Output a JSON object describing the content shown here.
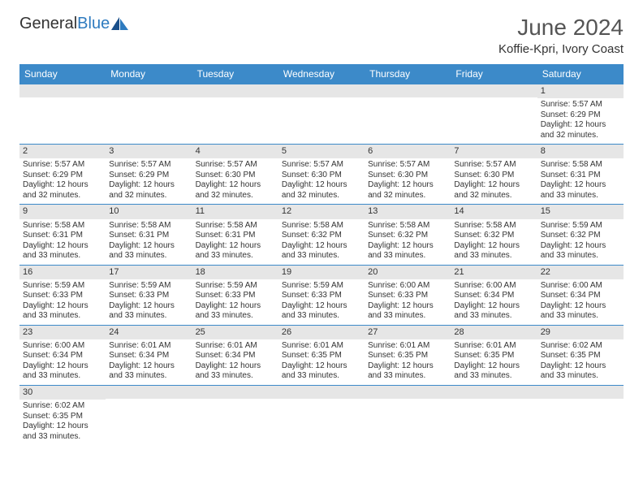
{
  "brand": {
    "part1": "General",
    "part2": "Blue"
  },
  "title": "June 2024",
  "location": "Koffie-Kpri, Ivory Coast",
  "colors": {
    "header_bg": "#3c8ac9",
    "header_text": "#ffffff",
    "daynum_bg": "#e6e6e6",
    "border": "#3c8ac9",
    "text": "#333333"
  },
  "day_headers": [
    "Sunday",
    "Monday",
    "Tuesday",
    "Wednesday",
    "Thursday",
    "Friday",
    "Saturday"
  ],
  "weeks": [
    [
      null,
      null,
      null,
      null,
      null,
      null,
      {
        "n": "1",
        "sr": "5:57 AM",
        "ss": "6:29 PM",
        "dl": "12 hours and 32 minutes."
      }
    ],
    [
      {
        "n": "2",
        "sr": "5:57 AM",
        "ss": "6:29 PM",
        "dl": "12 hours and 32 minutes."
      },
      {
        "n": "3",
        "sr": "5:57 AM",
        "ss": "6:29 PM",
        "dl": "12 hours and 32 minutes."
      },
      {
        "n": "4",
        "sr": "5:57 AM",
        "ss": "6:30 PM",
        "dl": "12 hours and 32 minutes."
      },
      {
        "n": "5",
        "sr": "5:57 AM",
        "ss": "6:30 PM",
        "dl": "12 hours and 32 minutes."
      },
      {
        "n": "6",
        "sr": "5:57 AM",
        "ss": "6:30 PM",
        "dl": "12 hours and 32 minutes."
      },
      {
        "n": "7",
        "sr": "5:57 AM",
        "ss": "6:30 PM",
        "dl": "12 hours and 32 minutes."
      },
      {
        "n": "8",
        "sr": "5:58 AM",
        "ss": "6:31 PM",
        "dl": "12 hours and 33 minutes."
      }
    ],
    [
      {
        "n": "9",
        "sr": "5:58 AM",
        "ss": "6:31 PM",
        "dl": "12 hours and 33 minutes."
      },
      {
        "n": "10",
        "sr": "5:58 AM",
        "ss": "6:31 PM",
        "dl": "12 hours and 33 minutes."
      },
      {
        "n": "11",
        "sr": "5:58 AM",
        "ss": "6:31 PM",
        "dl": "12 hours and 33 minutes."
      },
      {
        "n": "12",
        "sr": "5:58 AM",
        "ss": "6:32 PM",
        "dl": "12 hours and 33 minutes."
      },
      {
        "n": "13",
        "sr": "5:58 AM",
        "ss": "6:32 PM",
        "dl": "12 hours and 33 minutes."
      },
      {
        "n": "14",
        "sr": "5:58 AM",
        "ss": "6:32 PM",
        "dl": "12 hours and 33 minutes."
      },
      {
        "n": "15",
        "sr": "5:59 AM",
        "ss": "6:32 PM",
        "dl": "12 hours and 33 minutes."
      }
    ],
    [
      {
        "n": "16",
        "sr": "5:59 AM",
        "ss": "6:33 PM",
        "dl": "12 hours and 33 minutes."
      },
      {
        "n": "17",
        "sr": "5:59 AM",
        "ss": "6:33 PM",
        "dl": "12 hours and 33 minutes."
      },
      {
        "n": "18",
        "sr": "5:59 AM",
        "ss": "6:33 PM",
        "dl": "12 hours and 33 minutes."
      },
      {
        "n": "19",
        "sr": "5:59 AM",
        "ss": "6:33 PM",
        "dl": "12 hours and 33 minutes."
      },
      {
        "n": "20",
        "sr": "6:00 AM",
        "ss": "6:33 PM",
        "dl": "12 hours and 33 minutes."
      },
      {
        "n": "21",
        "sr": "6:00 AM",
        "ss": "6:34 PM",
        "dl": "12 hours and 33 minutes."
      },
      {
        "n": "22",
        "sr": "6:00 AM",
        "ss": "6:34 PM",
        "dl": "12 hours and 33 minutes."
      }
    ],
    [
      {
        "n": "23",
        "sr": "6:00 AM",
        "ss": "6:34 PM",
        "dl": "12 hours and 33 minutes."
      },
      {
        "n": "24",
        "sr": "6:01 AM",
        "ss": "6:34 PM",
        "dl": "12 hours and 33 minutes."
      },
      {
        "n": "25",
        "sr": "6:01 AM",
        "ss": "6:34 PM",
        "dl": "12 hours and 33 minutes."
      },
      {
        "n": "26",
        "sr": "6:01 AM",
        "ss": "6:35 PM",
        "dl": "12 hours and 33 minutes."
      },
      {
        "n": "27",
        "sr": "6:01 AM",
        "ss": "6:35 PM",
        "dl": "12 hours and 33 minutes."
      },
      {
        "n": "28",
        "sr": "6:01 AM",
        "ss": "6:35 PM",
        "dl": "12 hours and 33 minutes."
      },
      {
        "n": "29",
        "sr": "6:02 AM",
        "ss": "6:35 PM",
        "dl": "12 hours and 33 minutes."
      }
    ],
    [
      {
        "n": "30",
        "sr": "6:02 AM",
        "ss": "6:35 PM",
        "dl": "12 hours and 33 minutes."
      },
      null,
      null,
      null,
      null,
      null,
      null
    ]
  ],
  "labels": {
    "sunrise": "Sunrise:",
    "sunset": "Sunset:",
    "daylight": "Daylight:"
  }
}
